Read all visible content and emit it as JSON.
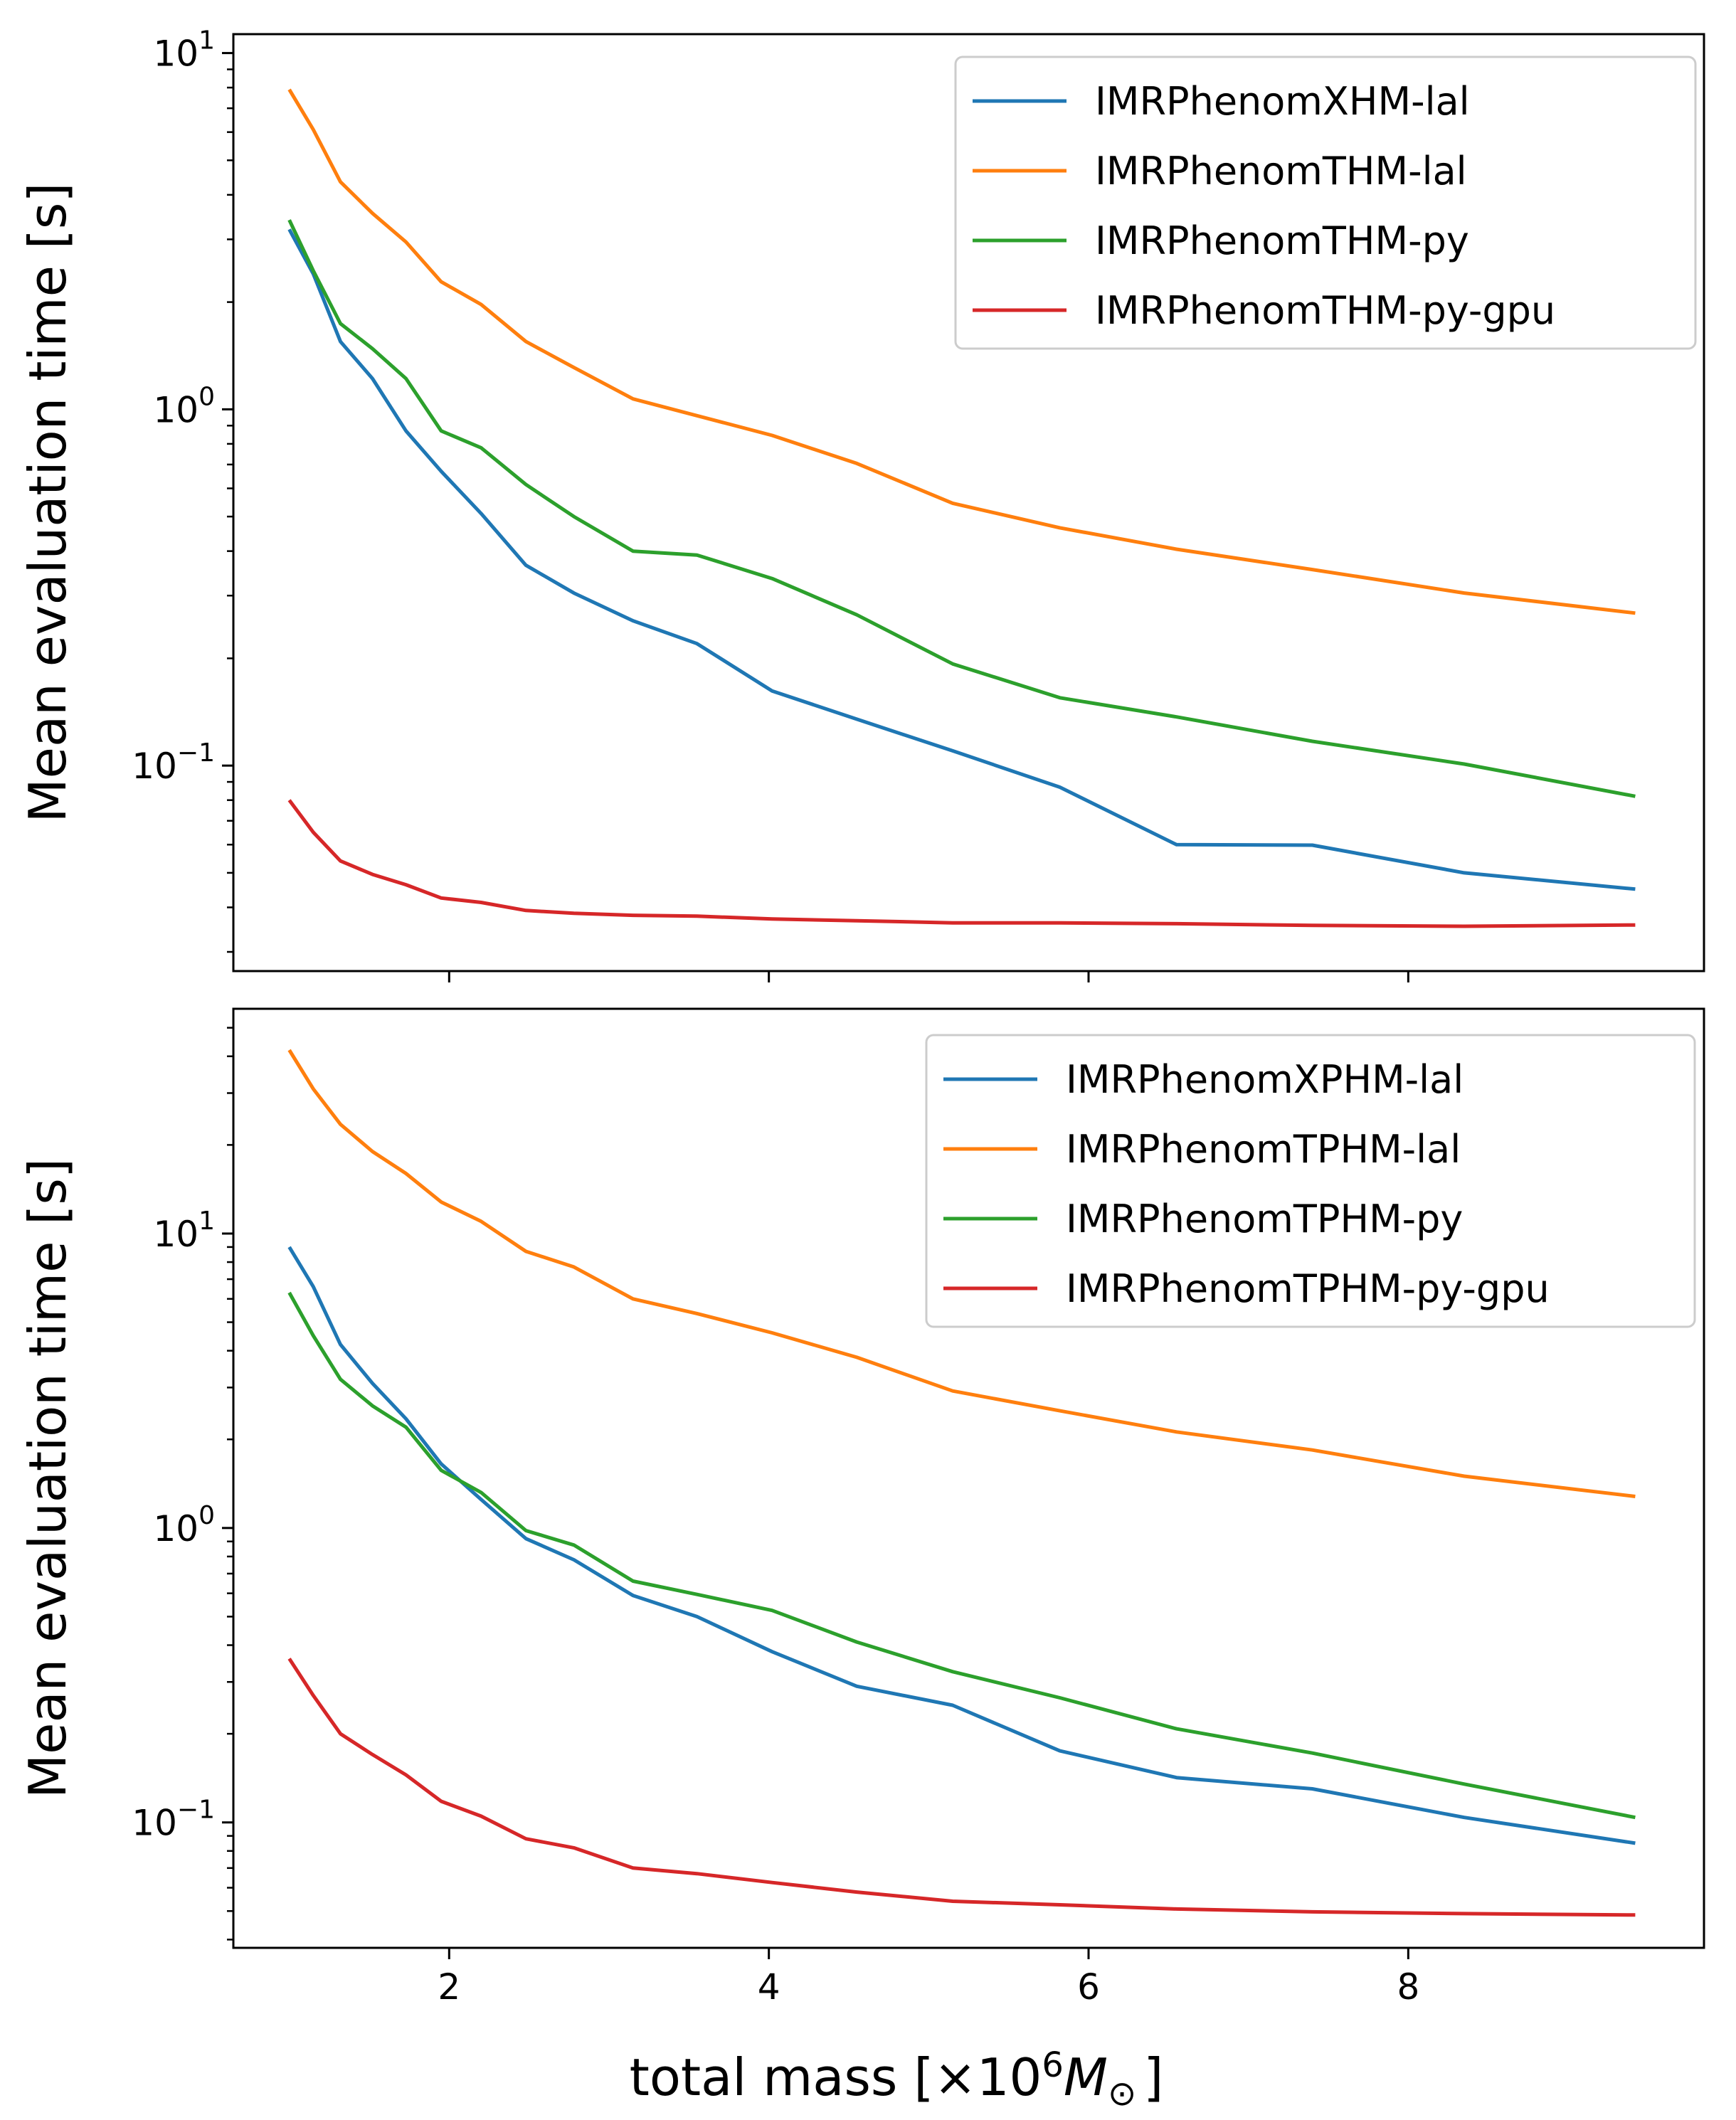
{
  "figure": {
    "xlabel_prefix": "total mass [×10",
    "xlabel_exp": "6",
    "xlabel_var": "M",
    "xlabel_sub": "⊙",
    "xlabel_suffix": "]"
  },
  "chart_data": [
    {
      "type": "line",
      "yscale": "log",
      "ylabel": "Mean evaluation time [s]",
      "xlabel": "",
      "xlim": [
        0.65,
        9.85
      ],
      "ylim": [
        0.0265,
        11.3
      ],
      "xticks": [
        2,
        4,
        6,
        8
      ],
      "xtick_labels_visible": false,
      "yticks": [
        {
          "value": 0.1,
          "base": "10",
          "exp": "−1"
        },
        {
          "value": 1,
          "base": "10",
          "exp": "0"
        },
        {
          "value": 10,
          "base": "10",
          "exp": "1"
        }
      ],
      "legend_position": "top-right",
      "x": [
        1.0,
        1.15,
        1.32,
        1.52,
        1.73,
        1.95,
        2.2,
        2.48,
        2.78,
        3.15,
        3.55,
        4.02,
        4.55,
        5.15,
        5.82,
        6.55,
        7.4,
        8.35,
        9.42
      ],
      "series": [
        {
          "name": "IMRPhenomXHM-lal",
          "color": "#1f77b4",
          "values": [
            3.2,
            2.4,
            1.55,
            1.22,
            0.87,
            0.67,
            0.51,
            0.365,
            0.305,
            0.255,
            0.22,
            0.162,
            0.135,
            0.11,
            0.087,
            0.06,
            0.0598,
            0.05,
            0.045
          ]
        },
        {
          "name": "IMRPhenomTHM-lal",
          "color": "#ff7f0e",
          "values": [
            7.9,
            6.1,
            4.35,
            3.55,
            2.95,
            2.28,
            1.97,
            1.55,
            1.31,
            1.07,
            0.96,
            0.845,
            0.705,
            0.545,
            0.465,
            0.405,
            0.355,
            0.305,
            0.268
          ]
        },
        {
          "name": "IMRPhenomTHM-py",
          "color": "#2ca02c",
          "values": [
            3.4,
            2.45,
            1.74,
            1.48,
            1.22,
            0.87,
            0.78,
            0.615,
            0.5,
            0.4,
            0.39,
            0.335,
            0.265,
            0.193,
            0.155,
            0.137,
            0.117,
            0.101,
            0.082
          ]
        },
        {
          "name": "IMRPhenomTHM-py-gpu",
          "color": "#d62728",
          "values": [
            0.08,
            0.065,
            0.054,
            0.0495,
            0.0463,
            0.0425,
            0.0413,
            0.0392,
            0.0385,
            0.038,
            0.0378,
            0.0371,
            0.0367,
            0.0362,
            0.0362,
            0.036,
            0.0356,
            0.0354,
            0.0357
          ]
        }
      ]
    },
    {
      "type": "line",
      "yscale": "log",
      "ylabel": "Mean evaluation time [s]",
      "xlabel": "total mass [×10^6 M_⊙]",
      "xlim": [
        0.65,
        9.85
      ],
      "ylim": [
        0.0375,
        58
      ],
      "xticks": [
        2,
        4,
        6,
        8
      ],
      "xtick_labels": [
        "2",
        "4",
        "6",
        "8"
      ],
      "xtick_labels_visible": true,
      "yticks": [
        {
          "value": 0.1,
          "base": "10",
          "exp": "−1"
        },
        {
          "value": 1,
          "base": "10",
          "exp": "0"
        },
        {
          "value": 10,
          "base": "10",
          "exp": "1"
        }
      ],
      "legend_position": "top-right",
      "x": [
        1.0,
        1.15,
        1.32,
        1.52,
        1.73,
        1.95,
        2.2,
        2.48,
        2.78,
        3.15,
        3.55,
        4.02,
        4.55,
        5.15,
        5.82,
        6.55,
        7.4,
        8.35,
        9.42
      ],
      "series": [
        {
          "name": "IMRPhenomXPHM-lal",
          "color": "#1f77b4",
          "values": [
            9.0,
            6.6,
            4.2,
            3.1,
            2.35,
            1.65,
            1.25,
            0.92,
            0.78,
            0.59,
            0.5,
            0.38,
            0.29,
            0.25,
            0.175,
            0.142,
            0.13,
            0.104,
            0.085
          ]
        },
        {
          "name": "IMRPhenomTPHM-lal",
          "color": "#ff7f0e",
          "values": [
            42.0,
            31.0,
            23.5,
            19.0,
            16.0,
            12.8,
            11.0,
            8.7,
            7.7,
            6.0,
            5.35,
            4.6,
            3.8,
            2.92,
            2.5,
            2.12,
            1.84,
            1.5,
            1.28
          ]
        },
        {
          "name": "IMRPhenomTPHM-py",
          "color": "#2ca02c",
          "values": [
            6.3,
            4.5,
            3.2,
            2.6,
            2.2,
            1.57,
            1.32,
            0.98,
            0.875,
            0.66,
            0.595,
            0.525,
            0.41,
            0.325,
            0.265,
            0.208,
            0.172,
            0.135,
            0.104
          ]
        },
        {
          "name": "IMRPhenomTPHM-py-gpu",
          "color": "#d62728",
          "values": [
            0.36,
            0.27,
            0.2,
            0.17,
            0.145,
            0.118,
            0.105,
            0.088,
            0.082,
            0.07,
            0.067,
            0.0625,
            0.058,
            0.054,
            0.0525,
            0.0508,
            0.0497,
            0.049,
            0.0485
          ]
        }
      ]
    }
  ]
}
